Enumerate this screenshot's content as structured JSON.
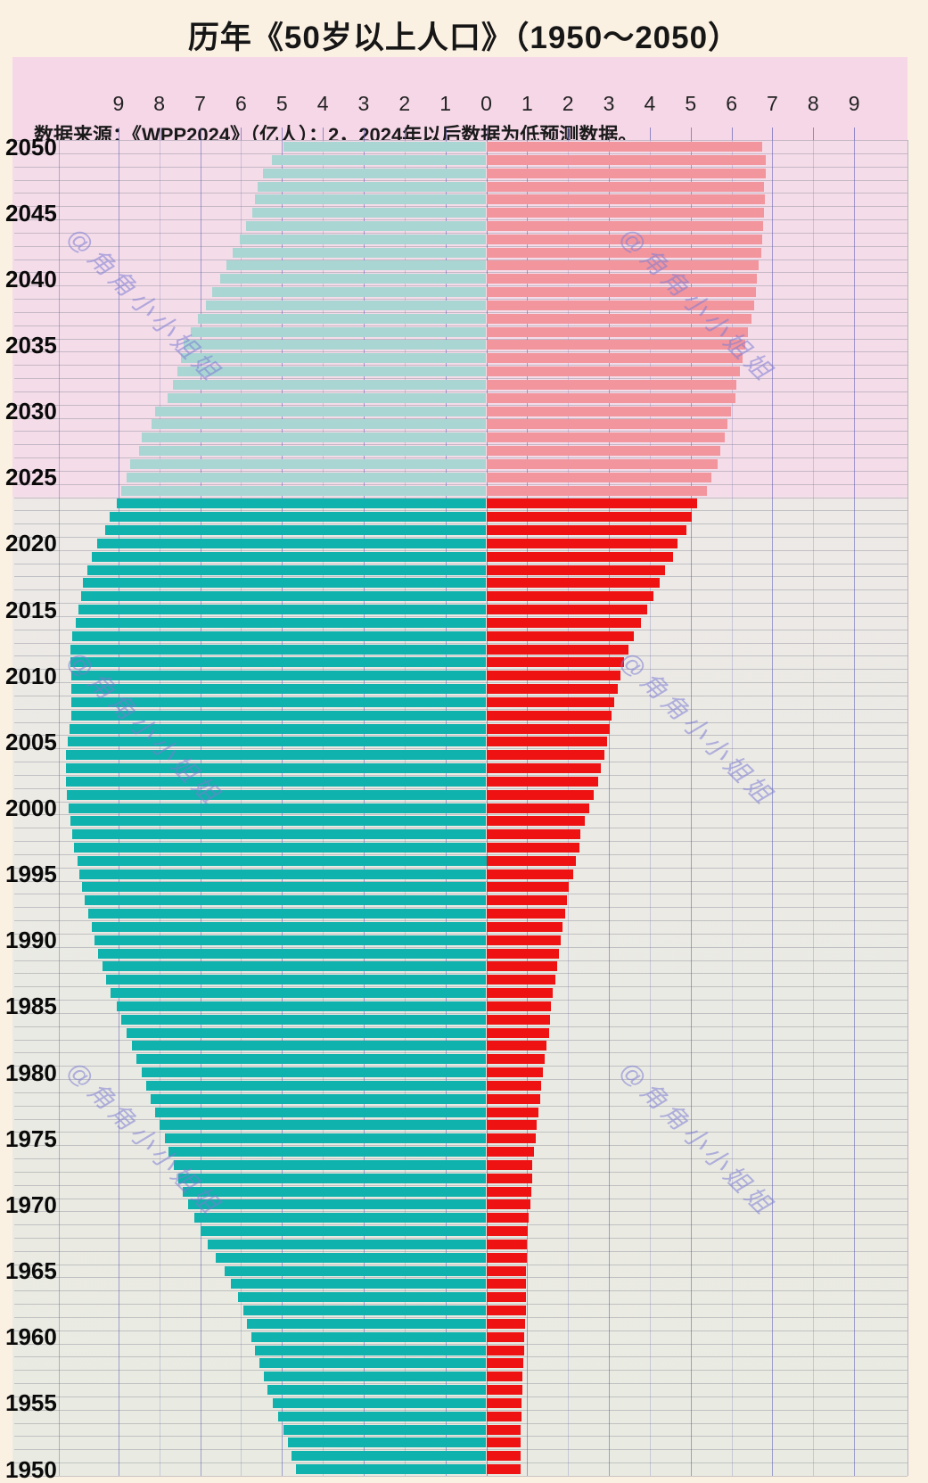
{
  "page": {
    "title": "历年《50岁以上人口》（1950～2050）",
    "source_note": "数据来源：《WPP2024》（亿人）；2，2024年以后数据为低预测数据。",
    "watermark_text": "@角角小小姐姐"
  },
  "colors": {
    "outer_background": "#fbf1e3",
    "source_band": "#f6d7e7",
    "plot_upper_pink": "#f4dce9",
    "plot_lower_gray": "#e9ebe2",
    "left_solid": "#0fb2ac",
    "left_faded": "#a9d6d3",
    "right_solid": "#ee1212",
    "right_faded": "#f2959d",
    "grid_blue": "#8080cc"
  },
  "chart_data": {
    "type": "bar",
    "variant": "diverging-horizontal-population",
    "title": "历年《50岁以上人口》（1950～2050）",
    "unit": "亿人",
    "x_axis_ticks": [
      "9",
      "8",
      "7",
      "6",
      "5",
      "4",
      "3",
      "2",
      "1",
      "0",
      "1",
      "2",
      "3",
      "4",
      "5",
      "6",
      "7",
      "8",
      "9"
    ],
    "x_axis_max_per_side": 10,
    "year_start": 1950,
    "year_end": 2050,
    "year_label_step": 5,
    "forecast_from_year": 2024,
    "grid": true,
    "legend": "none",
    "series": [
      {
        "name": "left",
        "color": "#0fb2ac",
        "faded_color": "#a9d6d3",
        "values": [
          4.65,
          4.76,
          4.85,
          4.96,
          5.1,
          5.23,
          5.36,
          5.45,
          5.55,
          5.65,
          5.75,
          5.85,
          5.95,
          6.07,
          6.24,
          6.4,
          6.62,
          6.82,
          6.98,
          7.15,
          7.3,
          7.42,
          7.53,
          7.65,
          7.77,
          7.87,
          8.0,
          8.11,
          8.21,
          8.31,
          8.43,
          8.55,
          8.67,
          8.81,
          8.93,
          9.05,
          9.2,
          9.3,
          9.4,
          9.49,
          9.58,
          9.66,
          9.74,
          9.82,
          9.9,
          9.95,
          10.0,
          10.08,
          10.12,
          10.18,
          10.22,
          10.27,
          10.29,
          10.29,
          10.28,
          10.25,
          10.2,
          10.16,
          10.16,
          10.15,
          10.16,
          10.17,
          10.18,
          10.13,
          10.05,
          9.98,
          9.91,
          9.87,
          9.76,
          9.65,
          9.51,
          9.33,
          9.22,
          9.03,
          8.93,
          8.8,
          8.71,
          8.49,
          8.42,
          8.2,
          8.1,
          7.8,
          7.67,
          7.55,
          7.48,
          7.4,
          7.22,
          7.05,
          6.87,
          6.7,
          6.52,
          6.36,
          6.2,
          6.04,
          5.88,
          5.72,
          5.66,
          5.6,
          5.47,
          5.25,
          4.97
        ]
      },
      {
        "name": "right",
        "color": "#ee1212",
        "faded_color": "#f2959d",
        "values": [
          0.84,
          0.83,
          0.84,
          0.85,
          0.86,
          0.86,
          0.88,
          0.89,
          0.9,
          0.92,
          0.93,
          0.95,
          0.96,
          0.97,
          0.97,
          0.97,
          0.99,
          0.99,
          1.01,
          1.04,
          1.08,
          1.1,
          1.12,
          1.13,
          1.16,
          1.2,
          1.23,
          1.27,
          1.31,
          1.35,
          1.39,
          1.43,
          1.48,
          1.53,
          1.56,
          1.59,
          1.63,
          1.68,
          1.73,
          1.78,
          1.82,
          1.87,
          1.92,
          1.97,
          2.02,
          2.12,
          2.19,
          2.27,
          2.3,
          2.41,
          2.52,
          2.63,
          2.74,
          2.81,
          2.89,
          2.96,
          3.03,
          3.07,
          3.14,
          3.21,
          3.29,
          3.36,
          3.47,
          3.61,
          3.79,
          3.94,
          4.09,
          4.25,
          4.38,
          4.56,
          4.67,
          4.89,
          5.03,
          5.16,
          5.4,
          5.5,
          5.65,
          5.72,
          5.83,
          5.91,
          5.98,
          6.09,
          6.12,
          6.2,
          6.27,
          6.34,
          6.41,
          6.49,
          6.56,
          6.6,
          6.63,
          6.67,
          6.73,
          6.76,
          6.78,
          6.8,
          6.82,
          6.8,
          6.83,
          6.83,
          6.74
        ]
      }
    ]
  }
}
